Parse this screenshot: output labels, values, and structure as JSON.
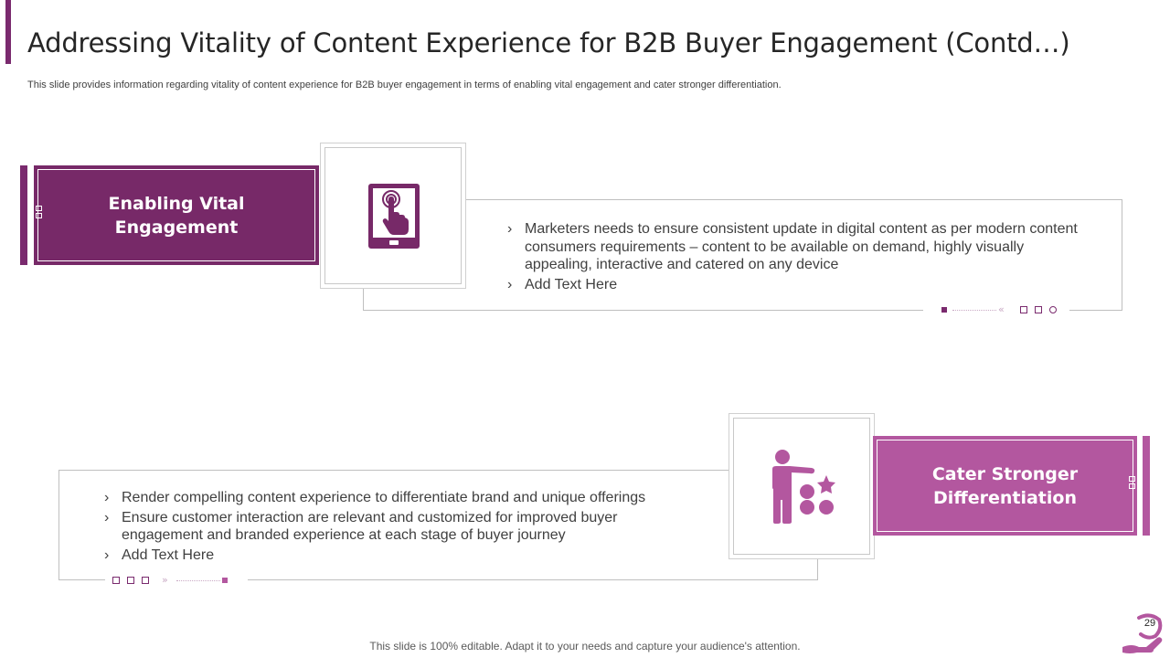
{
  "header": {
    "title": "Addressing Vitality of Content Experience for B2B Buyer Engagement (Contd…)",
    "subtitle": "This slide provides information regarding vitality of content experience for B2B buyer engagement in terms of enabling vital engagement and cater stronger differentiation."
  },
  "sections": [
    {
      "heading_line1": "Enabling Vital",
      "heading_line2": "Engagement",
      "icon": "tablet-touch-icon",
      "bullets": [
        "Marketers needs to ensure consistent update in digital content as per modern content consumers requirements – content to be available on demand, highly visually appealing, interactive and catered on any device",
        "Add Text Here"
      ]
    },
    {
      "heading_line1": "Cater Stronger",
      "heading_line2": "Differentiation",
      "icon": "person-choosing-options-icon",
      "bullets": [
        "Render compelling content experience to differentiate brand and unique offerings",
        "Ensure customer interaction are relevant and customized for improved buyer engagement and branded experience at each stage of buyer journey",
        "Add Text Here"
      ]
    }
  ],
  "colors": {
    "dark_purple": "#772968",
    "light_purple": "#b3579f"
  },
  "footer": {
    "note": "This slide is 100% editable. Adapt it to your needs and capture your audience's attention.",
    "page_number": "29"
  }
}
